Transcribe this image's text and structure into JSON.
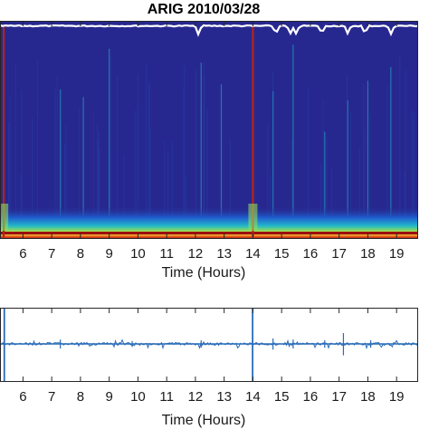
{
  "chart_data": [
    {
      "type": "heatmap",
      "title": "ARIG 2010/03/28",
      "xlabel": "Time (Hours)",
      "ylabel": "",
      "xlim": [
        5.2,
        19.75
      ],
      "x_ticks": [
        6,
        7,
        8,
        9,
        10,
        11,
        12,
        13,
        14,
        15,
        16,
        17,
        18,
        19
      ],
      "x_tick_labels": [
        "6",
        "7",
        "8",
        "9",
        "10",
        "11",
        "12",
        "13",
        "14",
        "15",
        "16",
        "17",
        "18",
        "19"
      ],
      "grid": false,
      "colormap": [
        "#1e2a8c",
        "#1f5fd0",
        "#22b8c8",
        "#8fdc5a",
        "#f2d23a",
        "#e8551e",
        "#9b0f0f"
      ],
      "background_color": "#27288f",
      "strong_events": [
        {
          "x": 5.33,
          "color": "#b5231a"
        },
        {
          "x": 14.0,
          "color": "#b5231a"
        }
      ],
      "faint_events": [
        7.3,
        8.1,
        9.0,
        12.2,
        12.9,
        14.7,
        15.4,
        16.5,
        17.3,
        18.0,
        18.8
      ],
      "energy_curve_color": "#ffffff"
    },
    {
      "type": "line",
      "title": "",
      "xlabel": "Time (Hours)",
      "ylabel": "",
      "xlim": [
        5.2,
        19.75
      ],
      "x_ticks": [
        6,
        7,
        8,
        9,
        10,
        11,
        12,
        13,
        14,
        15,
        16,
        17,
        18,
        19
      ],
      "x_tick_labels": [
        "6",
        "7",
        "8",
        "9",
        "10",
        "11",
        "12",
        "13",
        "14",
        "15",
        "16",
        "17",
        "18",
        "19"
      ],
      "grid": false,
      "series_color": "#2a6cb8",
      "spikes": [
        {
          "x": 5.35,
          "amplitude": 1.0
        },
        {
          "x": 7.3,
          "amplitude": 0.12
        },
        {
          "x": 9.8,
          "amplitude": 0.08
        },
        {
          "x": 12.2,
          "amplitude": 0.1
        },
        {
          "x": 13.99,
          "amplitude": 1.0
        },
        {
          "x": 14.7,
          "amplitude": 0.15
        },
        {
          "x": 15.4,
          "amplitude": 0.12
        },
        {
          "x": 16.5,
          "amplitude": 0.1
        },
        {
          "x": 17.15,
          "amplitude": 0.3
        },
        {
          "x": 18.1,
          "amplitude": 0.1
        }
      ]
    }
  ]
}
